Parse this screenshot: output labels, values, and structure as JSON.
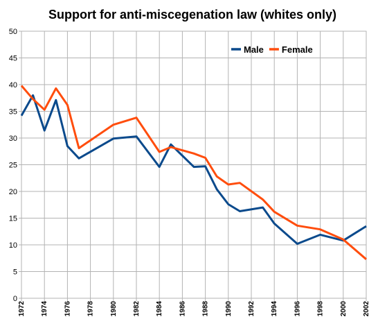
{
  "chart_data": {
    "type": "line",
    "title": "Support for anti-miscegenation law (whites only)",
    "xlabel": "",
    "ylabel": "",
    "x": [
      1972,
      1973,
      1974,
      1975,
      1976,
      1977,
      1980,
      1982,
      1984,
      1985,
      1987,
      1988,
      1989,
      1990,
      1991,
      1993,
      1994,
      1996,
      1998,
      2000,
      2002
    ],
    "x_ticks": [
      "1972",
      "1974",
      "1976",
      "1978",
      "1980",
      "1982",
      "1984",
      "1986",
      "1988",
      "1990",
      "1992",
      "1994",
      "1996",
      "1998",
      "2000",
      "2002"
    ],
    "y_ticks": [
      "0",
      "5",
      "10",
      "15",
      "20",
      "25",
      "30",
      "35",
      "40",
      "45",
      "50"
    ],
    "xlim": [
      1972,
      2002
    ],
    "ylim": [
      0,
      50
    ],
    "grid": true,
    "legend_position": "top-right",
    "series": [
      {
        "name": "Male",
        "color": "#0b4a8c",
        "values": [
          34.2,
          38.0,
          31.4,
          37.1,
          28.5,
          26.2,
          29.9,
          30.3,
          24.6,
          28.8,
          24.6,
          24.7,
          20.4,
          17.6,
          16.3,
          17.0,
          14.0,
          10.2,
          11.9,
          10.8,
          13.5
        ]
      },
      {
        "name": "Female",
        "color": "#ff4d0d",
        "values": [
          39.8,
          37.3,
          35.3,
          39.3,
          36.2,
          28.1,
          32.5,
          33.8,
          27.4,
          28.3,
          27.1,
          26.3,
          22.8,
          21.3,
          21.6,
          18.5,
          16.2,
          13.6,
          12.9,
          11.0,
          7.3
        ]
      }
    ]
  }
}
